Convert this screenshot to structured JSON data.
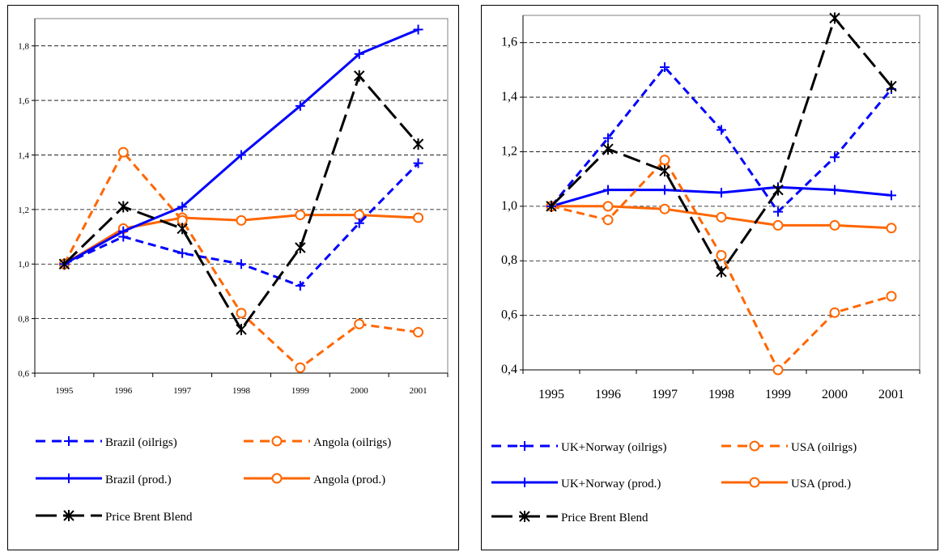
{
  "chart_data": [
    {
      "type": "line",
      "x": [
        "1995",
        "1996",
        "1997",
        "1998",
        "1999",
        "2000",
        "2001"
      ],
      "ylim": [
        0.6,
        1.9
      ],
      "yticks": [
        "0,6",
        "0,8",
        "1,0",
        "1,2",
        "1,4",
        "1,6",
        "1,8"
      ],
      "grid": true,
      "legend_position": "bottom",
      "series": [
        {
          "name": "Brazil (oilrigs)",
          "color": "#0000FF",
          "style": "dashed",
          "marker": "plus",
          "values": [
            1.0,
            1.1,
            1.04,
            1.0,
            0.92,
            1.15,
            1.37
          ]
        },
        {
          "name": "Angola (oilrigs)",
          "color": "#FF6600",
          "style": "dashed",
          "marker": "circle",
          "values": [
            1.0,
            1.41,
            1.16,
            0.82,
            0.62,
            0.78,
            0.75
          ]
        },
        {
          "name": "Brazil (prod.)",
          "color": "#0000FF",
          "style": "solid",
          "marker": "plus",
          "values": [
            1.0,
            1.12,
            1.21,
            1.4,
            1.58,
            1.77,
            1.86
          ]
        },
        {
          "name": "Angola (prod.)",
          "color": "#FF6600",
          "style": "solid",
          "marker": "circle",
          "values": [
            1.0,
            1.13,
            1.17,
            1.16,
            1.18,
            1.18,
            1.17
          ]
        },
        {
          "name": "Price Brent Blend",
          "color": "#000000",
          "style": "longdash",
          "marker": "star",
          "values": [
            1.0,
            1.21,
            1.13,
            0.76,
            1.06,
            1.69,
            1.44
          ]
        }
      ]
    },
    {
      "type": "line",
      "x": [
        "1995",
        "1996",
        "1997",
        "1998",
        "1999",
        "2000",
        "2001"
      ],
      "ylim": [
        0.4,
        1.7
      ],
      "yticks": [
        "0,4",
        "0,6",
        "0,8",
        "1,0",
        "1,2",
        "1,4",
        "1,6"
      ],
      "grid": true,
      "legend_position": "bottom",
      "series": [
        {
          "name": "UK+Norway (oilrigs)",
          "color": "#0000FF",
          "style": "dashed",
          "marker": "plus",
          "values": [
            1.0,
            1.25,
            1.51,
            1.28,
            0.98,
            1.18,
            1.43
          ]
        },
        {
          "name": "USA (oilrigs)",
          "color": "#FF6600",
          "style": "dashed",
          "marker": "circle",
          "values": [
            1.0,
            0.95,
            1.17,
            0.82,
            0.4,
            0.61,
            0.67
          ]
        },
        {
          "name": "UK+Norway (prod.)",
          "color": "#0000FF",
          "style": "solid",
          "marker": "plus",
          "values": [
            1.0,
            1.06,
            1.06,
            1.05,
            1.07,
            1.06,
            1.04
          ]
        },
        {
          "name": "USA (prod.)",
          "color": "#FF6600",
          "style": "solid",
          "marker": "circle",
          "values": [
            1.0,
            1.0,
            0.99,
            0.96,
            0.93,
            0.93,
            0.92
          ]
        },
        {
          "name": "Price Brent Blend",
          "color": "#000000",
          "style": "longdash",
          "marker": "star",
          "values": [
            1.0,
            1.21,
            1.13,
            0.76,
            1.06,
            1.69,
            1.44
          ]
        }
      ]
    }
  ]
}
